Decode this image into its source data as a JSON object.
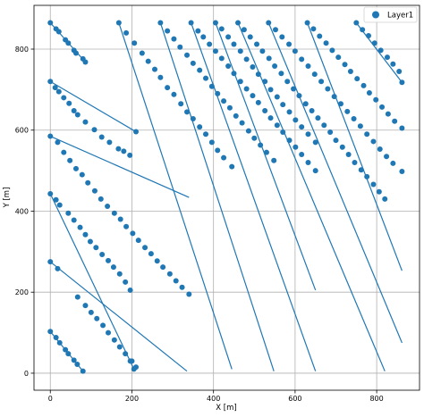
{
  "chart_data": {
    "type": "scatter",
    "title": "",
    "xlabel": "X [m]",
    "ylabel": "Y [m]",
    "xlim": [
      -40,
      905
    ],
    "ylim": [
      -42,
      908
    ],
    "xticks": [
      0,
      200,
      400,
      600,
      800
    ],
    "yticks": [
      0,
      200,
      400,
      600,
      800
    ],
    "grid": true,
    "legend_position": "top-right",
    "colors": {
      "series": "#1f77b4",
      "grid": "#b0b0b0",
      "axes": "#000000"
    },
    "series": [
      {
        "name": "Layer1",
        "line_segments": [
          [
            [
              0,
              865
            ],
            [
              86,
              768
            ]
          ],
          [
            [
              0,
              720
            ],
            [
              210,
              596
            ]
          ],
          [
            [
              0,
              585
            ],
            [
              340,
              434
            ]
          ],
          [
            [
              0,
              443
            ],
            [
              205,
              10
            ]
          ],
          [
            [
              0,
              275
            ],
            [
              335,
              5
            ]
          ],
          [
            [
              0,
              103
            ],
            [
              80,
              5
            ]
          ],
          [
            [
              168,
              865
            ],
            [
              445,
              10
            ]
          ],
          [
            [
              270,
              865
            ],
            [
              548,
              5
            ]
          ],
          [
            [
              345,
              865
            ],
            [
              650,
              5
            ]
          ],
          [
            [
              405,
              865
            ],
            [
              650,
              205
            ]
          ],
          [
            [
              460,
              865
            ],
            [
              820,
              5
            ]
          ],
          [
            [
              535,
              865
            ],
            [
              862,
              75
            ]
          ],
          [
            [
              630,
              865
            ],
            [
              862,
              253
            ]
          ],
          [
            [
              750,
              865
            ],
            [
              862,
              718
            ]
          ]
        ],
        "points": [
          [
            0,
            865
          ],
          [
            14,
            850
          ],
          [
            21,
            843
          ],
          [
            37,
            823
          ],
          [
            44,
            815
          ],
          [
            58,
            797
          ],
          [
            63,
            790
          ],
          [
            80,
            776
          ],
          [
            86,
            768
          ],
          [
            0,
            720
          ],
          [
            12,
            705
          ],
          [
            21,
            695
          ],
          [
            33,
            680
          ],
          [
            46,
            666
          ],
          [
            58,
            648
          ],
          [
            67,
            638
          ],
          [
            86,
            620
          ],
          [
            108,
            601
          ],
          [
            126,
            583
          ],
          [
            145,
            570
          ],
          [
            167,
            554
          ],
          [
            180,
            548
          ],
          [
            195,
            538
          ],
          [
            210,
            596
          ],
          [
            0,
            585
          ],
          [
            18,
            570
          ],
          [
            33,
            545
          ],
          [
            48,
            525
          ],
          [
            63,
            505
          ],
          [
            78,
            490
          ],
          [
            92,
            470
          ],
          [
            109,
            450
          ],
          [
            124,
            430
          ],
          [
            140,
            412
          ],
          [
            157,
            395
          ],
          [
            172,
            380
          ],
          [
            186,
            362
          ],
          [
            202,
            345
          ],
          [
            216,
            328
          ],
          [
            232,
            310
          ],
          [
            247,
            295
          ],
          [
            262,
            277
          ],
          [
            276,
            262
          ],
          [
            293,
            245
          ],
          [
            308,
            228
          ],
          [
            323,
            212
          ],
          [
            340,
            195
          ],
          [
            0,
            443
          ],
          [
            14,
            428
          ],
          [
            23,
            415
          ],
          [
            44,
            395
          ],
          [
            58,
            378
          ],
          [
            73,
            360
          ],
          [
            86,
            342
          ],
          [
            98,
            325
          ],
          [
            112,
            310
          ],
          [
            127,
            293
          ],
          [
            142,
            278
          ],
          [
            155,
            262
          ],
          [
            170,
            245
          ],
          [
            184,
            225
          ],
          [
            196,
            205
          ],
          [
            200,
            30
          ],
          [
            205,
            10
          ],
          [
            0,
            275
          ],
          [
            18,
            258
          ],
          [
            67,
            188
          ],
          [
            86,
            167
          ],
          [
            100,
            150
          ],
          [
            114,
            135
          ],
          [
            129,
            118
          ],
          [
            142,
            100
          ],
          [
            157,
            82
          ],
          [
            170,
            65
          ],
          [
            184,
            48
          ],
          [
            196,
            30
          ],
          [
            210,
            15
          ],
          [
            0,
            103
          ],
          [
            14,
            88
          ],
          [
            23,
            75
          ],
          [
            37,
            58
          ],
          [
            44,
            48
          ],
          [
            58,
            32
          ],
          [
            66,
            22
          ],
          [
            80,
            5
          ],
          [
            168,
            865
          ],
          [
            186,
            840
          ],
          [
            206,
            815
          ],
          [
            225,
            790
          ],
          [
            240,
            770
          ],
          [
            256,
            750
          ],
          [
            270,
            730
          ],
          [
            287,
            705
          ],
          [
            303,
            688
          ],
          [
            320,
            665
          ],
          [
            335,
            645
          ],
          [
            350,
            628
          ],
          [
            366,
            608
          ],
          [
            381,
            590
          ],
          [
            396,
            570
          ],
          [
            410,
            550
          ],
          [
            425,
            532
          ],
          [
            445,
            510
          ],
          [
            270,
            865
          ],
          [
            287,
            845
          ],
          [
            303,
            825
          ],
          [
            318,
            805
          ],
          [
            335,
            785
          ],
          [
            350,
            765
          ],
          [
            366,
            748
          ],
          [
            381,
            728
          ],
          [
            396,
            708
          ],
          [
            410,
            690
          ],
          [
            425,
            672
          ],
          [
            440,
            655
          ],
          [
            455,
            635
          ],
          [
            470,
            618
          ],
          [
            486,
            598
          ],
          [
            500,
            580
          ],
          [
            515,
            563
          ],
          [
            530,
            545
          ],
          [
            548,
            525
          ],
          [
            345,
            865
          ],
          [
            362,
            845
          ],
          [
            375,
            830
          ],
          [
            390,
            812
          ],
          [
            405,
            795
          ],
          [
            420,
            777
          ],
          [
            436,
            758
          ],
          [
            450,
            740
          ],
          [
            466,
            720
          ],
          [
            481,
            702
          ],
          [
            496,
            685
          ],
          [
            510,
            668
          ],
          [
            526,
            648
          ],
          [
            540,
            630
          ],
          [
            556,
            612
          ],
          [
            570,
            595
          ],
          [
            586,
            575
          ],
          [
            601,
            558
          ],
          [
            616,
            540
          ],
          [
            632,
            520
          ],
          [
            650,
            500
          ],
          [
            405,
            865
          ],
          [
            420,
            850
          ],
          [
            436,
            830
          ],
          [
            450,
            812
          ],
          [
            466,
            795
          ],
          [
            481,
            775
          ],
          [
            496,
            756
          ],
          [
            510,
            738
          ],
          [
            526,
            720
          ],
          [
            540,
            700
          ],
          [
            556,
            682
          ],
          [
            570,
            663
          ],
          [
            586,
            645
          ],
          [
            601,
            625
          ],
          [
            616,
            608
          ],
          [
            632,
            590
          ],
          [
            650,
            570
          ],
          [
            460,
            865
          ],
          [
            475,
            848
          ],
          [
            490,
            830
          ],
          [
            506,
            812
          ],
          [
            520,
            795
          ],
          [
            536,
            777
          ],
          [
            550,
            758
          ],
          [
            566,
            740
          ],
          [
            581,
            720
          ],
          [
            596,
            702
          ],
          [
            610,
            685
          ],
          [
            626,
            665
          ],
          [
            641,
            648
          ],
          [
            656,
            630
          ],
          [
            671,
            612
          ],
          [
            686,
            595
          ],
          [
            700,
            575
          ],
          [
            716,
            558
          ],
          [
            731,
            540
          ],
          [
            746,
            520
          ],
          [
            762,
            502
          ],
          [
            776,
            485
          ],
          [
            792,
            466
          ],
          [
            806,
            448
          ],
          [
            820,
            430
          ],
          [
            535,
            865
          ],
          [
            552,
            848
          ],
          [
            568,
            830
          ],
          [
            585,
            812
          ],
          [
            600,
            795
          ],
          [
            616,
            775
          ],
          [
            632,
            758
          ],
          [
            648,
            738
          ],
          [
            664,
            720
          ],
          [
            680,
            702
          ],
          [
            696,
            683
          ],
          [
            712,
            665
          ],
          [
            728,
            646
          ],
          [
            744,
            628
          ],
          [
            760,
            610
          ],
          [
            776,
            590
          ],
          [
            792,
            572
          ],
          [
            808,
            553
          ],
          [
            824,
            535
          ],
          [
            840,
            518
          ],
          [
            862,
            498
          ],
          [
            630,
            865
          ],
          [
            645,
            850
          ],
          [
            660,
            832
          ],
          [
            676,
            815
          ],
          [
            691,
            797
          ],
          [
            706,
            780
          ],
          [
            722,
            762
          ],
          [
            736,
            745
          ],
          [
            752,
            727
          ],
          [
            768,
            710
          ],
          [
            782,
            692
          ],
          [
            798,
            675
          ],
          [
            813,
            657
          ],
          [
            828,
            640
          ],
          [
            844,
            622
          ],
          [
            862,
            605
          ],
          [
            750,
            865
          ],
          [
            765,
            848
          ],
          [
            780,
            833
          ],
          [
            795,
            815
          ],
          [
            810,
            797
          ],
          [
            826,
            780
          ],
          [
            840,
            763
          ],
          [
            855,
            745
          ],
          [
            862,
            718
          ]
        ]
      }
    ]
  }
}
